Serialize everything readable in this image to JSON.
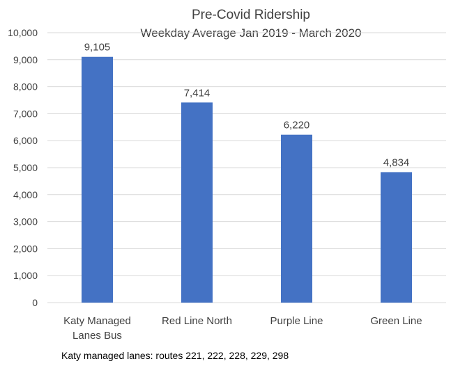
{
  "chart_data": {
    "type": "bar",
    "title": "Pre-Covid Ridership",
    "subtitle": "Weekday Average Jan 2019 - March 2020",
    "categories": [
      [
        "Katy Managed",
        "Lanes Bus"
      ],
      [
        "Red Line North"
      ],
      [
        "Purple Line"
      ],
      [
        "Green Line"
      ]
    ],
    "values": [
      9105,
      7414,
      6220,
      4834
    ],
    "data_labels": [
      "9,105",
      "7,414",
      "6,220",
      "4,834"
    ],
    "y_ticks": [
      "0",
      "1,000",
      "2,000",
      "3,000",
      "4,000",
      "5,000",
      "6,000",
      "7,000",
      "8,000",
      "9,000",
      "10,000"
    ],
    "ylim": [
      0,
      10000
    ],
    "grid": true,
    "bar_color": "#4472C4",
    "grid_color": "#D9D9D9"
  },
  "footnote": "Katy managed lanes: routes 221, 222, 228, 229, 298"
}
